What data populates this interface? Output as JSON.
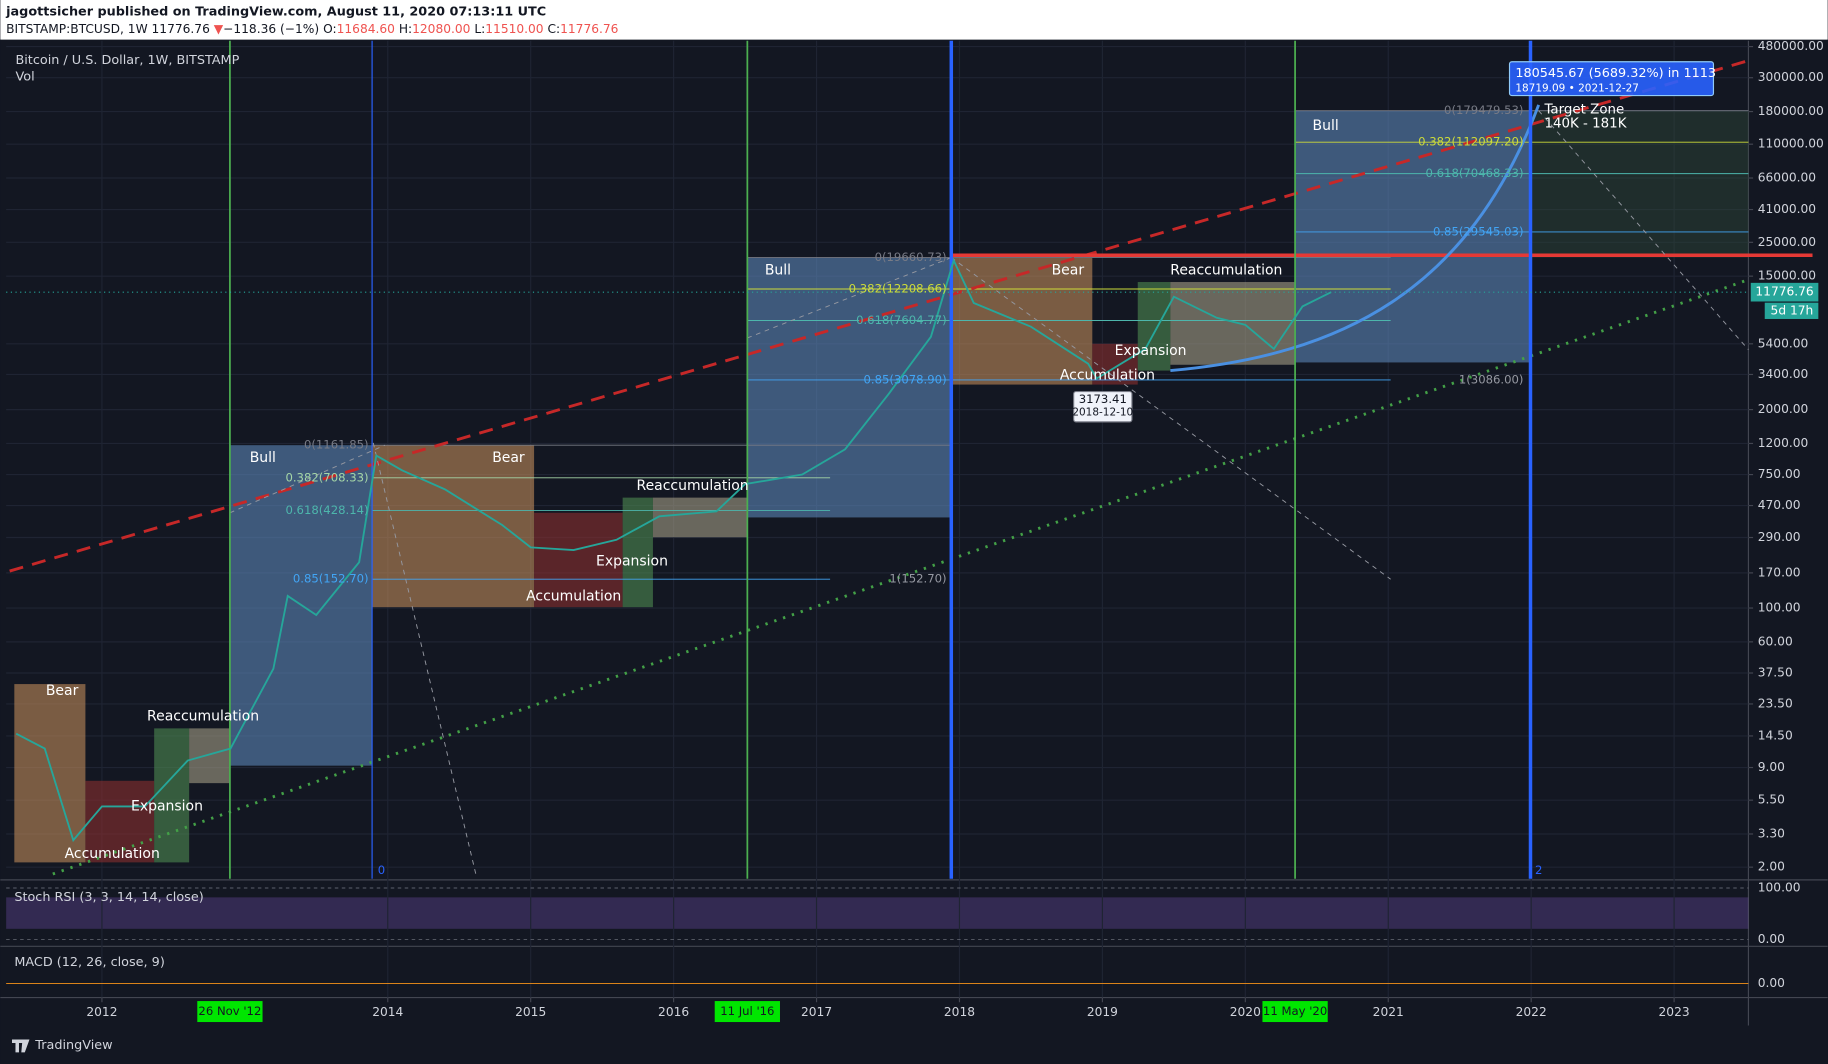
{
  "header": {
    "publisher": "jagottsicher published on TradingView.com, August 11, 2020 07:13:11 UTC",
    "symbol": "BITSTAMP:BTCUSD, 1W",
    "last": "11776.76",
    "arrow": "▼",
    "change": "−118.36 (−1%)",
    "o_label": "O:",
    "o": "11684.60",
    "h_label": "H:",
    "h": "12080.00",
    "l_label": "L:",
    "l": "11510.00",
    "c_label": "C:",
    "c": "11776.76"
  },
  "chart_data": {
    "type": "line",
    "log_scale": true,
    "grid": true,
    "series": [
      {
        "name": "Bitcoin / U.S. Dollar, 1W, BITSTAMP",
        "color": "#26a69a",
        "x": [
          2011.4,
          2011.6,
          2011.8,
          2012.0,
          2012.3,
          2012.6,
          2012.9,
          2013.2,
          2013.3,
          2013.5,
          2013.8,
          2013.92,
          2014.1,
          2014.4,
          2014.8,
          2015.0,
          2015.3,
          2015.6,
          2015.9,
          2016.3,
          2016.5,
          2016.9,
          2017.2,
          2017.5,
          2017.8,
          2017.96,
          2018.1,
          2018.5,
          2018.9,
          2018.96,
          2019.3,
          2019.5,
          2019.8,
          2020.0,
          2020.2,
          2020.4,
          2020.6
        ],
        "values": [
          15,
          12,
          3,
          5,
          5,
          10,
          12,
          40,
          120,
          90,
          200,
          1000,
          800,
          600,
          350,
          250,
          240,
          280,
          400,
          430,
          650,
          750,
          1100,
          2500,
          6000,
          19000,
          10000,
          7000,
          4000,
          3200,
          5000,
          11000,
          8000,
          7200,
          5000,
          9500,
          11776.76
        ]
      }
    ],
    "volume_label": "Vol",
    "xlim": [
      2011.33,
      2023.52
    ],
    "xticks": [
      2012,
      2014,
      2015,
      2016,
      2017,
      2018,
      2019,
      2020,
      2021,
      2022,
      2023
    ],
    "ylim": [
      1.68,
      524000
    ],
    "yticks": [
      {
        "value": 480000,
        "label": "480000.00"
      },
      {
        "value": 300000,
        "label": "300000.00"
      },
      {
        "value": 180000,
        "label": "180000.00"
      },
      {
        "value": 110000,
        "label": "110000.00"
      },
      {
        "value": 66000,
        "label": "66000.00"
      },
      {
        "value": 41000,
        "label": "41000.00"
      },
      {
        "value": 25000,
        "label": "25000.00"
      },
      {
        "value": 15000,
        "label": "15000.00"
      },
      {
        "value": 5400,
        "label": "5400.00"
      },
      {
        "value": 3400,
        "label": "3400.00"
      },
      {
        "value": 2000,
        "label": "2000.00"
      },
      {
        "value": 1200,
        "label": "1200.00"
      },
      {
        "value": 750,
        "label": "750.00"
      },
      {
        "value": 470,
        "label": "470.00"
      },
      {
        "value": 290,
        "label": "290.00"
      },
      {
        "value": 170,
        "label": "170.00"
      },
      {
        "value": 100,
        "label": "100.00"
      },
      {
        "value": 60,
        "label": "60.00"
      },
      {
        "value": 37.5,
        "label": "37.50"
      },
      {
        "value": 23.5,
        "label": "23.50"
      },
      {
        "value": 14.5,
        "label": "14.50"
      },
      {
        "value": 9,
        "label": "9.00"
      },
      {
        "value": 5.5,
        "label": "5.50"
      },
      {
        "value": 3.3,
        "label": "3.30"
      },
      {
        "value": 2,
        "label": "2.00"
      }
    ],
    "last_price": {
      "value": 11776.76,
      "label": "11776.76"
    },
    "countdown": "5d 17h",
    "phases": [
      "Bear",
      "Accumulation",
      "Expansion",
      "Reaccumulation",
      "Bull",
      "Bear",
      "Accumulation",
      "Expansion",
      "Reaccumulation",
      "Bull",
      "Bear",
      "Accumulation",
      "Expansion",
      "Reaccumulation",
      "Bull"
    ],
    "fib_labels": [
      "0(1161.85)",
      "0.382(708.33)",
      "0.618(428.14)",
      "0.85(152.70)",
      "1(152.70)",
      "0(19660.73)",
      "0.382(12208.66)",
      "0.618(7604.77)",
      "0.85(3078.90)",
      "1(3086.00)",
      "0(179479.53)",
      "0.382(112097.20)",
      "0.618(70468.33)",
      "0.85(29545.03)"
    ],
    "target_zone": [
      "Target Zone",
      "140K - 181K"
    ],
    "low_marker": [
      "3173.41",
      "2018-12-10"
    ],
    "projection": [
      "180545.67 (5689.32%) in 1113",
      "18719.09 • 2021-12-27"
    ],
    "pivot_marks": [
      "0",
      "2"
    ],
    "date_markers": [
      "26 Nov '12",
      "11 Jul '16",
      "11 May '20"
    ]
  },
  "panes": {
    "stoch": {
      "title": "Stoch RSI (3, 3, 14, 14, close)",
      "ylim": [
        0,
        100
      ],
      "yticks": [
        {
          "value": 100,
          "label": "100.00"
        },
        {
          "value": 0,
          "label": "0.00"
        }
      ]
    },
    "macd": {
      "title": "MACD (12, 26, close, 9)",
      "yticks": [
        {
          "value": 0,
          "label": "0.00"
        }
      ]
    }
  },
  "footer": {
    "brand": "TradingView"
  }
}
